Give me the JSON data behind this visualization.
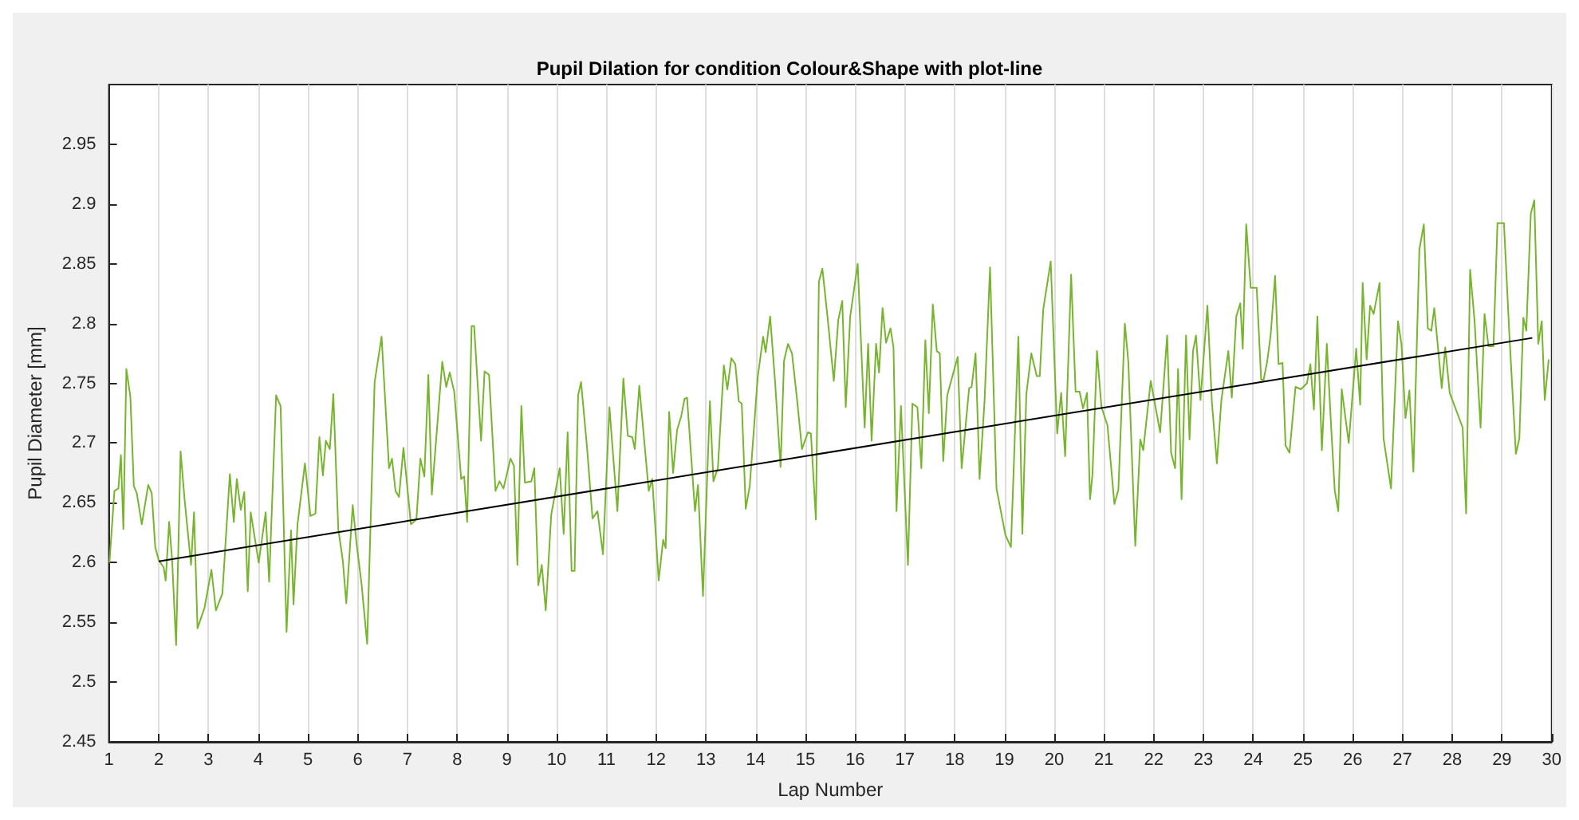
{
  "chart_data": {
    "type": "line",
    "title": "Pupil Dilation for condition Colour&Shape with plot-line",
    "xlabel": "Lap Number",
    "ylabel": "Pupil Diameter [mm]",
    "xlim": [
      1,
      30
    ],
    "xticks": [
      1,
      2,
      3,
      4,
      5,
      6,
      7,
      8,
      9,
      10,
      11,
      12,
      13,
      14,
      15,
      16,
      17,
      18,
      19,
      20,
      21,
      22,
      23,
      24,
      25,
      26,
      27,
      28,
      29,
      30
    ],
    "ylim": [
      2.45,
      3
    ],
    "yticks": [
      2.45,
      2.5,
      2.55,
      2.6,
      2.65,
      2.7,
      2.75,
      2.8,
      2.85,
      2.9,
      2.95
    ],
    "grid": "x",
    "marker": "none",
    "line_style": "solid",
    "series": [
      {
        "color": "#77b52e",
        "x": [
          1.01,
          1.11,
          1.19,
          1.24,
          1.29,
          1.35,
          1.43,
          1.5,
          1.56,
          1.66,
          1.79,
          1.86,
          1.93,
          2.0,
          2.1,
          2.14,
          2.21,
          2.27,
          2.35,
          2.44,
          2.52,
          2.65,
          2.71,
          2.78,
          2.92,
          3.06,
          3.15,
          3.28,
          3.43,
          3.51,
          3.57,
          3.65,
          3.72,
          3.79,
          3.85,
          4.01,
          4.15,
          4.22,
          4.36,
          4.45,
          4.57,
          4.66,
          4.71,
          4.79,
          4.94,
          5.05,
          5.15,
          5.23,
          5.3,
          5.36,
          5.44,
          5.51,
          5.61,
          5.7,
          5.77,
          5.9,
          5.98,
          6.08,
          6.19,
          6.34,
          6.48,
          6.63,
          6.69,
          6.76,
          6.83,
          6.92,
          7.07,
          7.18,
          7.26,
          7.34,
          7.42,
          7.49,
          7.7,
          7.78,
          7.85,
          7.94,
          8.08,
          8.14,
          8.2,
          8.29,
          8.34,
          8.48,
          8.55,
          8.64,
          8.77,
          8.85,
          8.93,
          9.07,
          9.14,
          9.21,
          9.29,
          9.36,
          9.49,
          9.55,
          9.63,
          9.7,
          9.78,
          9.89,
          10.06,
          10.14,
          10.22,
          10.3,
          10.36,
          10.43,
          10.49,
          10.61,
          10.72,
          10.82,
          10.93,
          11.06,
          11.22,
          11.34,
          11.43,
          11.52,
          11.57,
          11.66,
          11.85,
          11.92,
          12.05,
          12.14,
          12.19,
          12.26,
          12.34,
          12.42,
          12.5,
          12.57,
          12.62,
          12.78,
          12.84,
          12.94,
          13.08,
          13.15,
          13.24,
          13.36,
          13.43,
          13.51,
          13.59,
          13.66,
          13.72,
          13.8,
          13.88,
          14.04,
          14.15,
          14.2,
          14.29,
          14.39,
          14.5,
          14.57,
          14.65,
          14.73,
          14.83,
          14.93,
          15.05,
          15.11,
          15.21,
          15.27,
          15.34,
          15.45,
          15.57,
          15.66,
          15.74,
          15.81,
          15.9,
          16.05,
          16.19,
          16.26,
          16.33,
          16.42,
          16.48,
          16.55,
          16.62,
          16.71,
          16.77,
          16.83,
          16.92,
          17.06,
          17.15,
          17.25,
          17.33,
          17.41,
          17.48,
          17.56,
          17.64,
          17.7,
          17.77,
          17.85,
          18.06,
          18.14,
          18.29,
          18.34,
          18.42,
          18.5,
          18.6,
          18.71,
          18.84,
          19.02,
          19.13,
          19.28,
          19.36,
          19.44,
          19.54,
          19.65,
          19.71,
          19.78,
          19.93,
          20.06,
          20.14,
          20.22,
          20.34,
          20.43,
          20.51,
          20.58,
          20.66,
          20.72,
          20.77,
          20.86,
          20.95,
          21.07,
          21.21,
          21.29,
          21.42,
          21.49,
          21.63,
          21.73,
          21.79,
          21.94,
          22.13,
          22.27,
          22.35,
          22.43,
          22.49,
          22.56,
          22.65,
          22.72,
          22.79,
          22.85,
          22.94,
          23.08,
          23.17,
          23.27,
          23.36,
          23.5,
          23.57,
          23.66,
          23.74,
          23.79,
          23.86,
          23.95,
          24.07,
          24.16,
          24.21,
          24.28,
          24.35,
          24.44,
          24.51,
          24.59,
          24.65,
          24.73,
          24.85,
          24.96,
          25.08,
          25.15,
          25.22,
          25.29,
          25.38,
          25.48,
          25.57,
          25.64,
          25.71,
          25.78,
          25.92,
          26.07,
          26.15,
          26.2,
          26.28,
          26.35,
          26.42,
          26.54,
          26.62,
          26.77,
          26.91,
          26.98,
          27.06,
          27.14,
          27.22,
          27.34,
          27.43,
          27.51,
          27.58,
          27.64,
          27.79,
          27.86,
          27.95,
          28.21,
          28.28,
          28.36,
          28.45,
          28.57,
          28.65,
          28.73,
          28.83,
          28.91,
          29.04,
          29.15,
          29.28,
          29.35,
          29.43,
          29.49,
          29.58,
          29.65,
          29.73,
          29.8,
          29.86,
          29.94
        ],
        "values": [
          2.6,
          2.66,
          2.662,
          2.69,
          2.628,
          2.762,
          2.739,
          2.664,
          2.658,
          2.632,
          2.665,
          2.658,
          2.613,
          2.602,
          2.596,
          2.585,
          2.634,
          2.602,
          2.531,
          2.693,
          2.653,
          2.598,
          2.642,
          2.545,
          2.562,
          2.594,
          2.56,
          2.574,
          2.674,
          2.634,
          2.67,
          2.644,
          2.659,
          2.576,
          2.642,
          2.6,
          2.642,
          2.584,
          2.74,
          2.731,
          2.542,
          2.627,
          2.565,
          2.632,
          2.683,
          2.639,
          2.641,
          2.705,
          2.673,
          2.702,
          2.695,
          2.741,
          2.628,
          2.602,
          2.566,
          2.648,
          2.615,
          2.581,
          2.532,
          2.751,
          2.789,
          2.679,
          2.687,
          2.66,
          2.655,
          2.696,
          2.632,
          2.636,
          2.687,
          2.672,
          2.757,
          2.657,
          2.768,
          2.747,
          2.759,
          2.743,
          2.67,
          2.672,
          2.634,
          2.798,
          2.798,
          2.702,
          2.76,
          2.757,
          2.66,
          2.668,
          2.662,
          2.687,
          2.681,
          2.598,
          2.731,
          2.667,
          2.668,
          2.679,
          2.581,
          2.598,
          2.56,
          2.64,
          2.679,
          2.624,
          2.709,
          2.593,
          2.593,
          2.74,
          2.751,
          2.696,
          2.637,
          2.643,
          2.607,
          2.73,
          2.643,
          2.754,
          2.706,
          2.705,
          2.695,
          2.748,
          2.66,
          2.67,
          2.585,
          2.619,
          2.612,
          2.726,
          2.675,
          2.711,
          2.722,
          2.737,
          2.738,
          2.643,
          2.665,
          2.572,
          2.735,
          2.668,
          2.679,
          2.765,
          2.745,
          2.771,
          2.766,
          2.735,
          2.733,
          2.645,
          2.664,
          2.755,
          2.789,
          2.776,
          2.806,
          2.751,
          2.68,
          2.769,
          2.783,
          2.775,
          2.737,
          2.695,
          2.709,
          2.708,
          2.636,
          2.835,
          2.846,
          2.803,
          2.752,
          2.803,
          2.819,
          2.73,
          2.806,
          2.85,
          2.713,
          2.783,
          2.702,
          2.783,
          2.759,
          2.813,
          2.784,
          2.796,
          2.78,
          2.643,
          2.731,
          2.598,
          2.733,
          2.73,
          2.679,
          2.786,
          2.725,
          2.816,
          2.777,
          2.775,
          2.685,
          2.74,
          2.772,
          2.679,
          2.746,
          2.747,
          2.775,
          2.67,
          2.735,
          2.847,
          2.662,
          2.623,
          2.613,
          2.789,
          2.624,
          2.741,
          2.775,
          2.756,
          2.756,
          2.812,
          2.852,
          2.708,
          2.742,
          2.689,
          2.841,
          2.743,
          2.743,
          2.729,
          2.742,
          2.653,
          2.674,
          2.777,
          2.73,
          2.715,
          2.649,
          2.661,
          2.8,
          2.768,
          2.614,
          2.703,
          2.694,
          2.752,
          2.709,
          2.79,
          2.692,
          2.679,
          2.762,
          2.653,
          2.79,
          2.703,
          2.777,
          2.79,
          2.736,
          2.815,
          2.734,
          2.683,
          2.736,
          2.777,
          2.738,
          2.806,
          2.817,
          2.779,
          2.883,
          2.83,
          2.83,
          2.753,
          2.753,
          2.768,
          2.79,
          2.84,
          2.766,
          2.767,
          2.698,
          2.692,
          2.747,
          2.745,
          2.75,
          2.766,
          2.728,
          2.806,
          2.694,
          2.783,
          2.711,
          2.66,
          2.643,
          2.745,
          2.7,
          2.779,
          2.732,
          2.834,
          2.77,
          2.815,
          2.808,
          2.834,
          2.704,
          2.662,
          2.802,
          2.783,
          2.721,
          2.744,
          2.676,
          2.862,
          2.883,
          2.796,
          2.794,
          2.813,
          2.746,
          2.78,
          2.742,
          2.713,
          2.641,
          2.845,
          2.802,
          2.713,
          2.808,
          2.781,
          2.781,
          2.884,
          2.884,
          2.79,
          2.691,
          2.704,
          2.805,
          2.794,
          2.892,
          2.903,
          2.783,
          2.802,
          2.736,
          2.77
        ]
      },
      {
        "type": "line",
        "color": "#000000",
        "x": [
          2,
          29.61
        ],
        "values": [
          2.601,
          2.788
        ]
      }
    ]
  }
}
